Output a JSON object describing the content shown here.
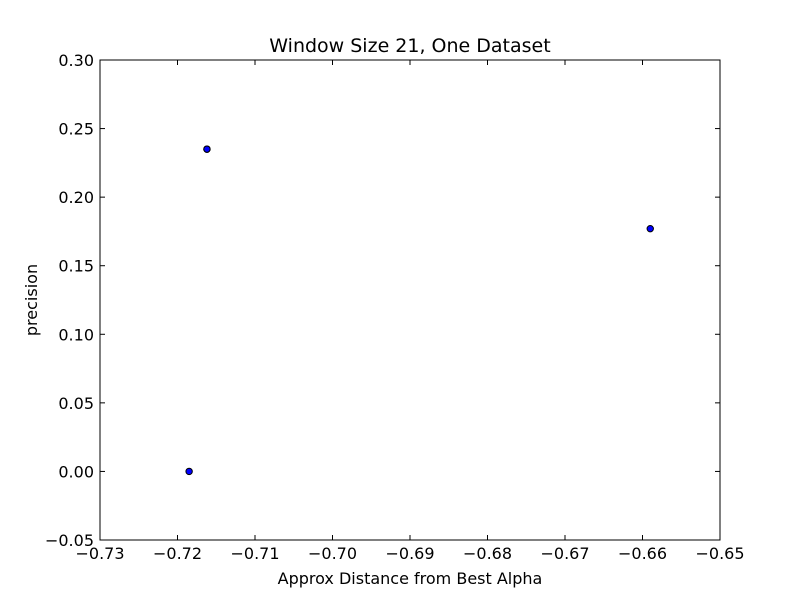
{
  "chart_data": {
    "type": "scatter",
    "title": "Window Size 21, One Dataset",
    "xlabel": "Approx Distance from Best Alpha",
    "ylabel": "precision",
    "xlim": [
      -0.73,
      -0.65
    ],
    "ylim": [
      -0.05,
      0.3
    ],
    "xticks": [
      -0.73,
      -0.72,
      -0.71,
      -0.7,
      -0.69,
      -0.68,
      -0.67,
      -0.66,
      -0.65
    ],
    "xtick_labels": [
      "−0.73",
      "−0.72",
      "−0.71",
      "−0.70",
      "−0.69",
      "−0.68",
      "−0.67",
      "−0.66",
      "−0.65"
    ],
    "yticks": [
      -0.05,
      0.0,
      0.05,
      0.1,
      0.15,
      0.2,
      0.25,
      0.3
    ],
    "ytick_labels": [
      "−0.05",
      "0.00",
      "0.05",
      "0.10",
      "0.15",
      "0.20",
      "0.25",
      "0.30"
    ],
    "grid": false,
    "marker_color": "#0000ff",
    "marker_edge_color": "#000000",
    "points": [
      {
        "x": -0.7162,
        "y": 0.235
      },
      {
        "x": -0.7162,
        "y": 0.235
      },
      {
        "x": -0.7185,
        "y": 0.0
      },
      {
        "x": -0.659,
        "y": 0.177
      }
    ]
  }
}
